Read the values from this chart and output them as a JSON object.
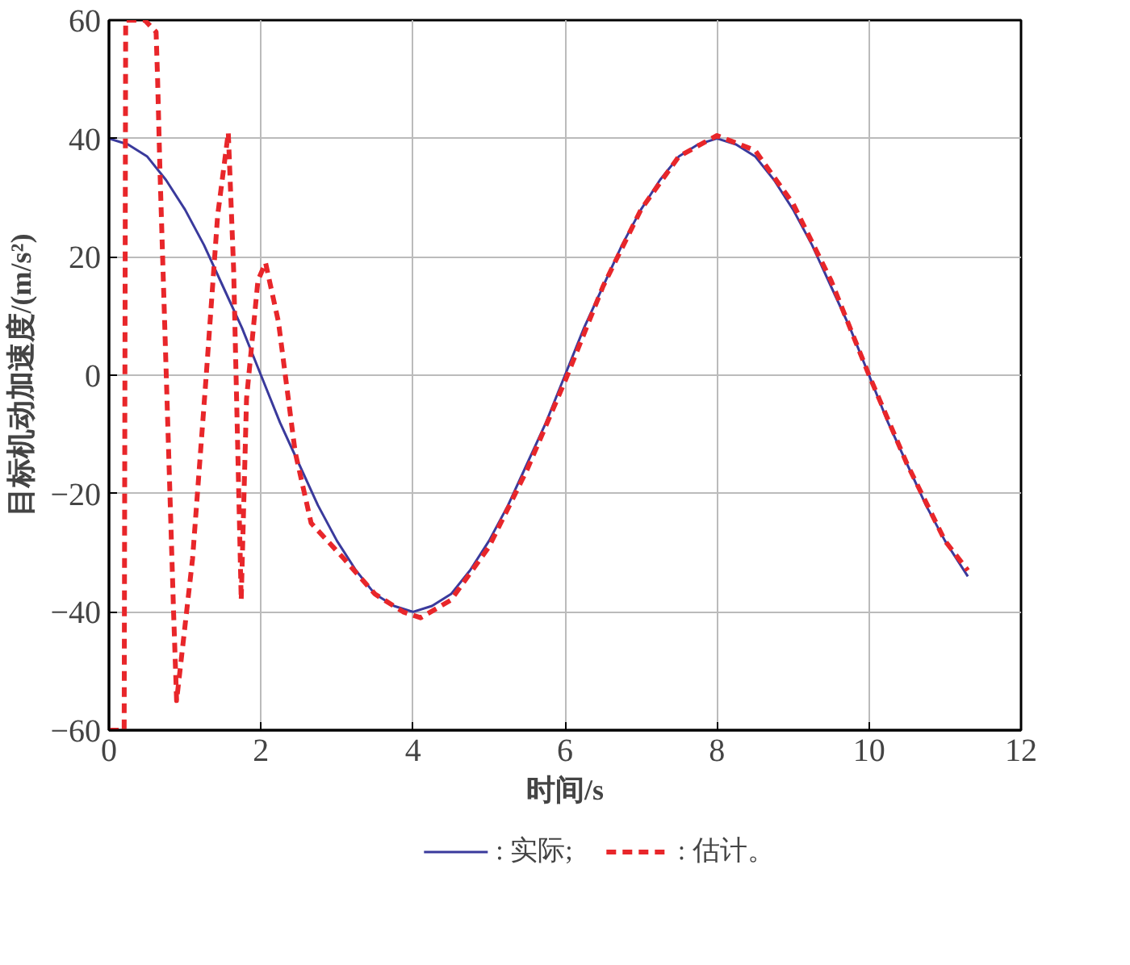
{
  "chart_data": {
    "type": "line",
    "xlabel": "时间/s",
    "ylabel": "目标机动加速度/(m/s²)",
    "xlim": [
      0,
      12
    ],
    "ylim": [
      -60,
      60
    ],
    "xticks": [
      0,
      2,
      4,
      6,
      8,
      10,
      12
    ],
    "yticks": [
      -60,
      -40,
      -20,
      0,
      20,
      40,
      60
    ],
    "grid": true,
    "legend": "bottom",
    "series": [
      {
        "name": ": 实际;",
        "color": "#3a3a9c",
        "line_style": "solid",
        "x": [
          0,
          0.25,
          0.5,
          0.75,
          1,
          1.25,
          1.5,
          1.75,
          2,
          2.25,
          2.5,
          2.75,
          3,
          3.25,
          3.5,
          3.75,
          4,
          4.25,
          4.5,
          4.75,
          5,
          5.25,
          5.5,
          5.75,
          6,
          6.25,
          6.5,
          6.75,
          7,
          7.25,
          7.5,
          7.75,
          8,
          8.25,
          8.5,
          8.75,
          9,
          9.25,
          9.5,
          9.75,
          10,
          10.25,
          10.5,
          10.75,
          11,
          11.3
        ],
        "values": [
          40,
          39,
          37,
          33,
          28,
          22,
          15,
          8,
          0,
          -8,
          -15,
          -22,
          -28,
          -33,
          -37,
          -39,
          -40,
          -39,
          -37,
          -33,
          -28,
          -22,
          -15,
          -8,
          0,
          8,
          15,
          22,
          28,
          33,
          37,
          39,
          40,
          39,
          37,
          33,
          28,
          22,
          15,
          8,
          0,
          -8,
          -15,
          -22,
          -28,
          -34
        ]
      },
      {
        "name": ": 估计。",
        "color": "#e8262a",
        "line_style": "dashed",
        "x": [
          0,
          0.2,
          0.22,
          0.47,
          0.62,
          0.64,
          0.67,
          0.85,
          0.89,
          1.1,
          1.28,
          1.43,
          1.57,
          1.64,
          1.74,
          1.81,
          1.96,
          2.06,
          2.23,
          2.45,
          2.66,
          3.09,
          3.5,
          3.87,
          4.1,
          4.5,
          5,
          5.5,
          6,
          6.5,
          7,
          7.5,
          8,
          8.5,
          9,
          9.5,
          10,
          10.5,
          11,
          11.3
        ],
        "values": [
          -60,
          -60,
          60,
          60,
          58,
          50,
          35,
          -40,
          -55,
          -31,
          0,
          27,
          41,
          18,
          -38,
          -4,
          16,
          19,
          9,
          -13,
          -25,
          -31,
          -37,
          -40,
          -41,
          -38,
          -29,
          -16,
          -1,
          15,
          28,
          37,
          40.5,
          38,
          29,
          16,
          0,
          -15,
          -28,
          -33
        ]
      }
    ]
  }
}
